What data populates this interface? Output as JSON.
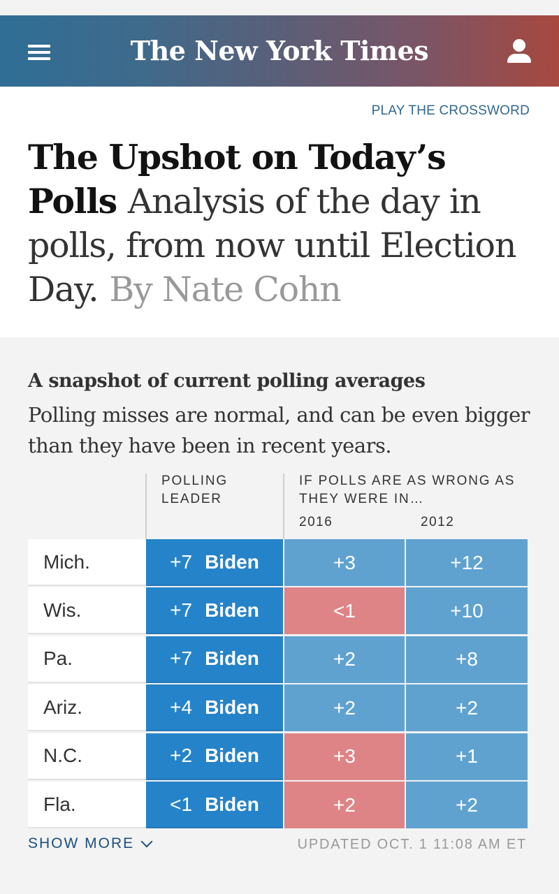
{
  "header": {
    "logo": "The New York Times",
    "menu_icon": "hamburger-menu-icon",
    "user_icon": "user-account-icon",
    "gradient": [
      "#2f6e96",
      "#a8483f"
    ]
  },
  "crossword_link": "PLAY THE CROSSWORD",
  "article": {
    "title": "The Upshot on Today’s Polls",
    "dek": "Analysis of the day in polls, from now until Election Day.",
    "byline": "By Nate Cohn"
  },
  "snapshot": {
    "title": "A snapshot of current polling averages",
    "subtitle": "Polling misses are normal, and can be even bigger than they have been in recent years.",
    "col_leader": "POLLING LEADER",
    "col_wrong": "IF POLLS ARE AS WRONG AS THEY WERE IN…",
    "year_1": "2016",
    "year_2": "2012",
    "colors": {
      "leader": "#2583c9",
      "blue": "#5fa2d0",
      "red": "#de8486"
    },
    "rows": [
      {
        "state": "Mich.",
        "margin": "+7",
        "leader": "Biden",
        "y2016": "+3",
        "y2016_color": "blue",
        "y2012": "+12",
        "y2012_color": "blue"
      },
      {
        "state": "Wis.",
        "margin": "+7",
        "leader": "Biden",
        "y2016": "<1",
        "y2016_color": "red",
        "y2012": "+10",
        "y2012_color": "blue"
      },
      {
        "state": "Pa.",
        "margin": "+7",
        "leader": "Biden",
        "y2016": "+2",
        "y2016_color": "blue",
        "y2012": "+8",
        "y2012_color": "blue"
      },
      {
        "state": "Ariz.",
        "margin": "+4",
        "leader": "Biden",
        "y2016": "+2",
        "y2016_color": "blue",
        "y2012": "+2",
        "y2012_color": "blue"
      },
      {
        "state": "N.C.",
        "margin": "+2",
        "leader": "Biden",
        "y2016": "+3",
        "y2016_color": "red",
        "y2012": "+1",
        "y2012_color": "blue"
      },
      {
        "state": "Fla.",
        "margin": "<1",
        "leader": "Biden",
        "y2016": "+2",
        "y2016_color": "red",
        "y2012": "+2",
        "y2012_color": "blue"
      }
    ],
    "show_more": "SHOW MORE",
    "updated": "UPDATED OCT. 1 11:08 AM ET"
  }
}
